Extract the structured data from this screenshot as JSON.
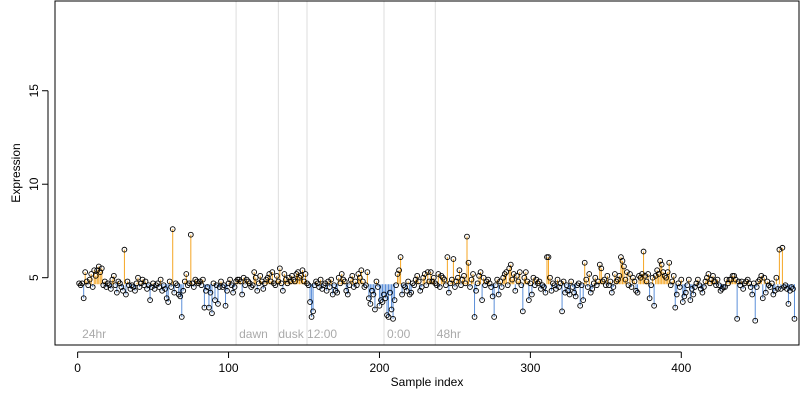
{
  "chart_data": {
    "type": "scatter",
    "xlabel": "Sample index",
    "ylabel": "Expression",
    "xlim": [
      -15,
      478
    ],
    "ylim": [
      1.4,
      19.8
    ],
    "x_ticks": [
      0,
      100,
      200,
      300,
      400
    ],
    "y_ticks": [
      5,
      10,
      15
    ],
    "baseline": 4.65,
    "colors": {
      "above": "#f5a623",
      "below": "#5b8fd9",
      "vline": "#dddddd",
      "annotation": "#aaaaaa",
      "point_stroke": "#000000"
    },
    "vlines": [
      105,
      133,
      152,
      203,
      237
    ],
    "annotations": [
      {
        "x": 3,
        "label": "24hr"
      },
      {
        "x": 107,
        "label": "dawn"
      },
      {
        "x": 133,
        "label": "dusk"
      },
      {
        "x": 152,
        "label": "12:00"
      },
      {
        "x": 205,
        "label": "0:00"
      },
      {
        "x": 238,
        "label": "48hr"
      }
    ],
    "values": [
      4.7,
      4.6,
      4.7,
      3.9,
      5.3,
      4.8,
      4.6,
      4.9,
      5.2,
      4.5,
      5.4,
      5.1,
      5.4,
      5.6,
      5.3,
      5.5,
      4.6,
      4.8,
      4.5,
      4.7,
      4.6,
      4.4,
      4.9,
      5.1,
      4.6,
      4.2,
      4.8,
      4.7,
      4.5,
      4.3,
      6.5,
      4.1,
      4.8,
      4.6,
      4.4,
      4.6,
      4.5,
      4.3,
      4.7,
      5.0,
      4.5,
      4.7,
      4.9,
      4.6,
      4.8,
      4.4,
      4.6,
      3.8,
      4.5,
      4.7,
      4.4,
      4.6,
      4.7,
      4.5,
      4.9,
      4.3,
      4.6,
      4.4,
      3.9,
      3.7,
      4.8,
      4.5,
      7.6,
      4.2,
      4.7,
      4.6,
      4.1,
      4.0,
      2.9,
      4.3,
      4.8,
      5.2,
      4.6,
      4.7,
      7.3,
      4.7,
      4.5,
      4.9,
      4.8,
      4.7,
      4.8,
      4.6,
      4.9,
      3.4,
      4.3,
      4.5,
      3.4,
      4.2,
      3.1,
      4.7,
      3.8,
      4.6,
      3.6,
      4.5,
      4.8,
      4.5,
      4.6,
      3.5,
      4.3,
      4.7,
      4.9,
      4.6,
      4.2,
      4.5,
      4.8,
      4.9,
      4.9,
      4.8,
      4.1,
      5.0,
      4.6,
      4.9,
      4.8,
      4.7,
      4.5,
      4.6,
      5.3,
      5.0,
      4.3,
      4.7,
      5.1,
      4.8,
      4.4,
      4.7,
      4.9,
      5.0,
      5.2,
      4.8,
      5.3,
      4.7,
      4.6,
      5.1,
      4.8,
      5.5,
      4.7,
      4.3,
      5.2,
      4.9,
      4.7,
      5.0,
      4.8,
      5.1,
      4.9,
      4.8,
      5.2,
      5.3,
      5.0,
      5.1,
      5.4,
      4.8,
      5.2,
      4.7,
      4.6,
      3.7,
      2.9,
      3.2,
      4.6,
      4.8,
      4.7,
      4.5,
      4.9,
      4.4,
      4.6,
      4.7,
      4.3,
      4.8,
      4.5,
      4.9,
      4.1,
      4.6,
      4.3,
      4.2,
      5.0,
      4.7,
      5.2,
      4.9,
      4.8,
      4.3,
      4.1,
      4.6,
      4.9,
      5.1,
      4.5,
      4.8,
      4.6,
      5.2,
      5.0,
      5.4,
      4.8,
      4.5,
      4.6,
      5.3,
      3.9,
      3.6,
      4.3,
      4.1,
      3.3,
      4.8,
      4.5,
      3.5,
      3.8,
      3.7,
      4.1,
      3.9,
      3.0,
      2.9,
      4.2,
      3.3,
      2.8,
      3.8,
      4.6,
      5.2,
      5.4,
      6.1,
      4.1,
      4.6,
      4.5,
      4.3,
      4.8,
      4.1,
      4.2,
      4.7,
      4.6,
      4.9,
      5.1,
      4.8,
      4.3,
      4.5,
      5.0,
      5.2,
      4.6,
      5.3,
      4.8,
      5.3,
      4.8,
      5.0,
      4.7,
      4.6,
      5.2,
      4.5,
      5.1,
      5.0,
      4.9,
      4.6,
      6.1,
      4.2,
      4.7,
      4.9,
      6.0,
      4.5,
      4.8,
      5.0,
      5.4,
      4.6,
      4.9,
      5.1,
      4.7,
      7.2,
      5.8,
      4.5,
      4.9,
      5.2,
      2.9,
      4.3,
      4.7,
      5.1,
      5.3,
      3.8,
      5.0,
      4.6,
      4.8,
      4.9,
      4.7,
      4.5,
      4.0,
      2.9,
      4.6,
      4.9,
      4.1,
      4.8,
      4.5,
      5.0,
      5.2,
      5.3,
      4.6,
      5.5,
      5.7,
      4.9,
      5.2,
      4.3,
      5.1,
      4.8,
      5.3,
      4.6,
      3.2,
      5.0,
      5.3,
      4.8,
      3.8,
      4.7,
      4.1,
      5.0,
      4.6,
      4.9,
      4.7,
      4.8,
      4.4,
      4.6,
      4.5,
      4.2,
      6.1,
      6.1,
      5.0,
      4.3,
      4.7,
      4.6,
      4.4,
      4.9,
      4.5,
      4.7,
      3.2,
      4.8,
      4.2,
      4.6,
      4.3,
      4.1,
      4.8,
      4.5,
      4.2,
      4.0,
      4.6,
      4.7,
      3.5,
      4.6,
      3.8,
      5.8,
      4.9,
      4.5,
      5.2,
      4.2,
      4.4,
      4.7,
      5.0,
      4.6,
      4.8,
      5.7,
      5.5,
      4.8,
      4.9,
      4.6,
      5.1,
      4.6,
      4.8,
      4.2,
      4.5,
      5.2,
      4.8,
      4.9,
      5.1,
      6.1,
      5.9,
      5.6,
      4.9,
      5.3,
      4.6,
      5.2,
      4.5,
      5.0,
      4.8,
      4.3,
      4.2,
      5.1,
      5.0,
      5.2,
      6.4,
      5.1,
      4.8,
      5.2,
      3.9,
      4.6,
      5.0,
      3.5,
      5.1,
      5.4,
      5.2,
      5.9,
      5.7,
      5.3,
      5.1,
      5.0,
      5.3,
      5.8,
      4.6,
      4.8,
      5.1,
      3.4,
      4.1,
      4.7,
      4.5,
      4.9,
      3.7,
      4.0,
      4.2,
      4.6,
      4.9,
      3.8,
      4.4,
      4.1,
      4.5,
      4.7,
      4.9,
      4.6,
      4.4,
      4.2,
      4.5,
      4.8,
      5.0,
      5.2,
      4.7,
      4.9,
      5.1,
      4.8,
      4.6,
      4.9,
      4.6,
      4.3,
      4.4,
      4.5,
      4.5,
      4.9,
      4.7,
      4.9,
      4.9,
      5.1,
      5.1,
      4.9,
      2.8,
      4.8,
      4.6,
      4.8,
      4.4,
      4.7,
      4.8,
      4.9,
      4.7,
      4.5,
      4.1,
      4.7,
      2.7,
      4.5,
      4.8,
      4.9,
      5.1,
      3.9,
      5.0,
      4.2,
      4.8,
      4.6,
      4.5,
      4.7,
      4.1,
      4.3,
      5.0,
      4.4,
      6.5,
      4.4,
      6.6,
      4.5,
      4.6,
      4.4,
      3.6,
      4.3,
      4.5,
      4.4,
      2.8
    ]
  }
}
